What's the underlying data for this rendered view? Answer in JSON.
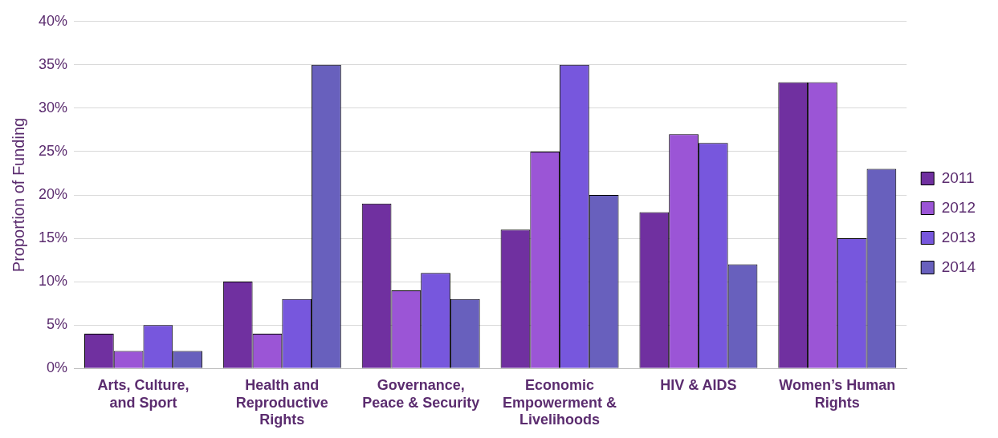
{
  "chart_data": {
    "type": "bar",
    "ylabel": "Proportion of Funding",
    "categories": [
      "Arts, Culture, and Sport",
      "Health and Reproductive Rights",
      "Governance, Peace & Security",
      "Economic Empowerment & Livelihoods",
      "HIV & AIDS",
      "Women’s Human Rights"
    ],
    "series": [
      {
        "name": "2011",
        "color": "#7030a0",
        "values": [
          4,
          10,
          19,
          16,
          18,
          33
        ]
      },
      {
        "name": "2012",
        "color": "#9b55d6",
        "values": [
          2,
          4,
          9,
          25,
          27,
          33
        ]
      },
      {
        "name": "2013",
        "color": "#7757dd",
        "values": [
          5,
          8,
          11,
          35,
          26,
          15
        ]
      },
      {
        "name": "2014",
        "color": "#6860bd",
        "values": [
          2,
          35,
          8,
          20,
          12,
          23
        ]
      }
    ],
    "ylim": [
      0,
      40
    ],
    "yticks": [
      {
        "value": 0,
        "label": "0%"
      },
      {
        "value": 5,
        "label": "5%"
      },
      {
        "value": 10,
        "label": "10%"
      },
      {
        "value": 15,
        "label": "15%"
      },
      {
        "value": 20,
        "label": "20%"
      },
      {
        "value": 25,
        "label": "25%"
      },
      {
        "value": 30,
        "label": "30%"
      },
      {
        "value": 35,
        "label": "35%"
      },
      {
        "value": 40,
        "label": "40%"
      }
    ],
    "grid": "y",
    "legend": "right"
  }
}
